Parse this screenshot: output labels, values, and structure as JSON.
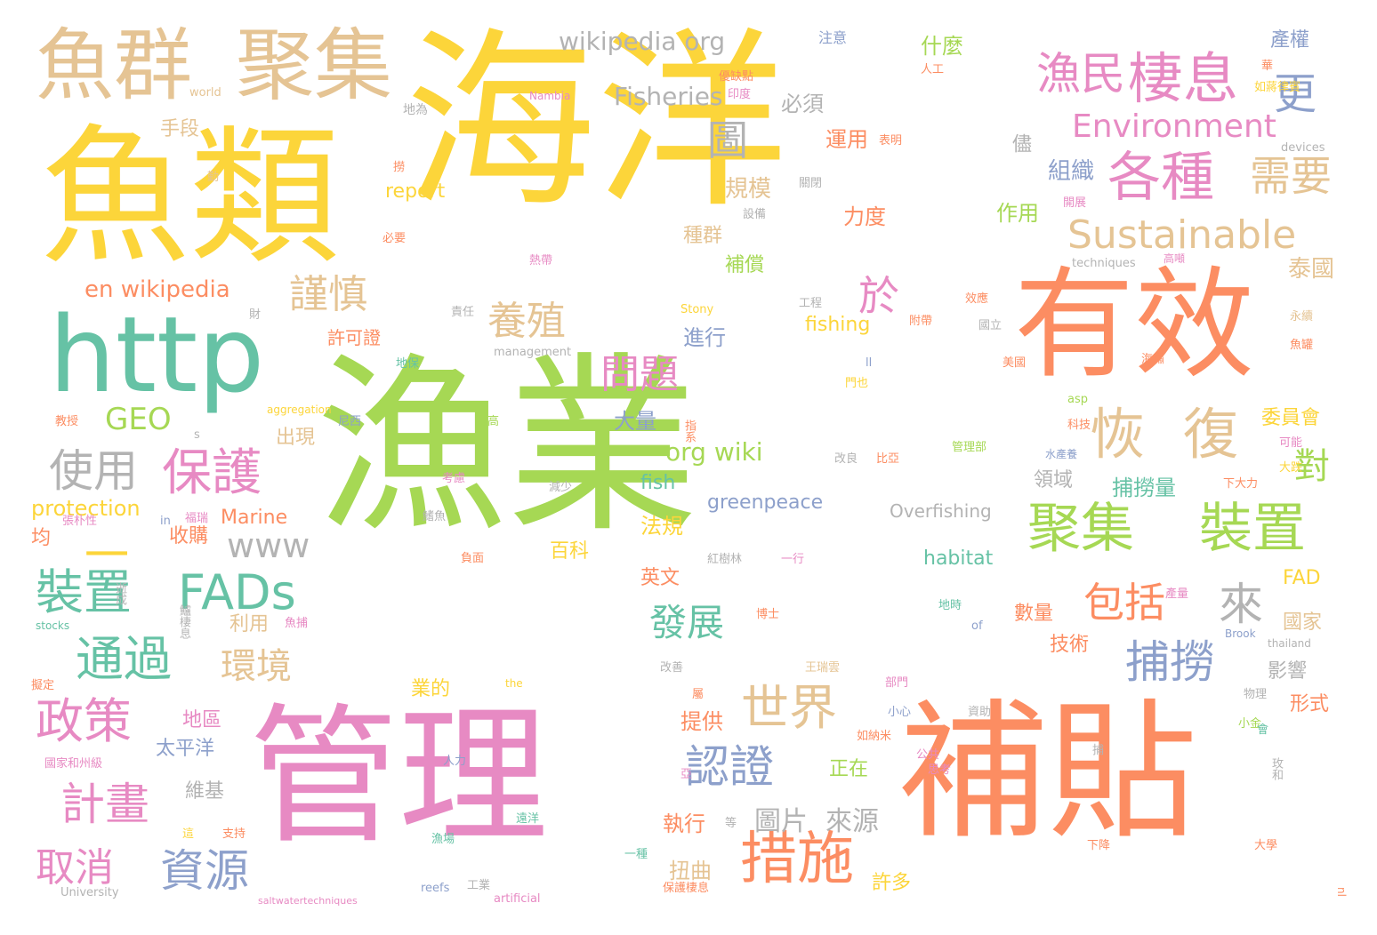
{
  "palette": {
    "yellow": "#fcd53a",
    "green": "#a6d854",
    "orange": "#fc8d62",
    "pink": "#e78ac3",
    "tan": "#e5c494",
    "teal": "#66c2a5",
    "blue": "#8da0cb",
    "gray": "#b3b3b3"
  },
  "words": [
    {
      "text": "海洋",
      "color": "yellow"
    },
    {
      "text": "漁業",
      "color": "green"
    },
    {
      "text": "魚類",
      "color": "yellow"
    },
    {
      "text": "管理",
      "color": "pink"
    },
    {
      "text": "補貼",
      "color": "orange"
    },
    {
      "text": "有效",
      "color": "orange"
    },
    {
      "text": "http",
      "color": "teal"
    },
    {
      "text": "魚群",
      "color": "tan"
    },
    {
      "text": "聚集",
      "color": "tan"
    },
    {
      "text": "wikipedia org",
      "color": "gray"
    },
    {
      "text": "漁民",
      "color": "pink"
    },
    {
      "text": "棲息",
      "color": "pink"
    },
    {
      "text": "更",
      "color": "blue"
    },
    {
      "text": "Fisheries",
      "color": "gray"
    },
    {
      "text": "Environment",
      "color": "pink"
    },
    {
      "text": "各種",
      "color": "pink"
    },
    {
      "text": "需要",
      "color": "tan"
    },
    {
      "text": "Sustainable",
      "color": "tan"
    },
    {
      "text": "圖",
      "color": "gray"
    },
    {
      "text": "於",
      "color": "pink"
    },
    {
      "text": "養殖",
      "color": "tan"
    },
    {
      "text": "謹慎",
      "color": "tan"
    },
    {
      "text": "恢",
      "color": "tan"
    },
    {
      "text": "復",
      "color": "tan"
    },
    {
      "text": "問題",
      "color": "pink"
    },
    {
      "text": "保護",
      "color": "pink"
    },
    {
      "text": "使用",
      "color": "gray"
    },
    {
      "text": "GEO",
      "color": "green"
    },
    {
      "text": "en wikipedia",
      "color": "orange"
    },
    {
      "text": "一",
      "color": "yellow"
    },
    {
      "text": "www",
      "color": "gray"
    },
    {
      "text": "裝置",
      "color": "teal"
    },
    {
      "text": "FADs",
      "color": "teal"
    },
    {
      "text": "聚集",
      "color": "green"
    },
    {
      "text": "裝置",
      "color": "green"
    },
    {
      "text": "來",
      "color": "gray"
    },
    {
      "text": "包括",
      "color": "orange"
    },
    {
      "text": "捕撈",
      "color": "blue"
    },
    {
      "text": "對",
      "color": "green"
    },
    {
      "text": "通過",
      "color": "teal"
    },
    {
      "text": "發展",
      "color": "teal"
    },
    {
      "text": "環境",
      "color": "tan"
    },
    {
      "text": "政策",
      "color": "pink"
    },
    {
      "text": "世界",
      "color": "tan"
    },
    {
      "text": "計畫",
      "color": "pink"
    },
    {
      "text": "認證",
      "color": "blue"
    },
    {
      "text": "措施",
      "color": "orange"
    },
    {
      "text": "取消",
      "color": "pink"
    },
    {
      "text": "資源",
      "color": "blue"
    },
    {
      "text": "圖片",
      "color": "gray"
    },
    {
      "text": "來源",
      "color": "gray"
    },
    {
      "text": "org wiki",
      "color": "green"
    },
    {
      "text": "greenpeace",
      "color": "blue"
    },
    {
      "text": "Overfishing",
      "color": "gray"
    },
    {
      "text": "habitat",
      "color": "teal"
    },
    {
      "text": "fish",
      "color": "teal"
    },
    {
      "text": "protection",
      "color": "yellow"
    },
    {
      "text": "Marine",
      "color": "orange"
    },
    {
      "text": "report",
      "color": "yellow"
    },
    {
      "text": "fishing",
      "color": "yellow"
    },
    {
      "text": "什麼",
      "color": "green"
    },
    {
      "text": "必須",
      "color": "gray"
    },
    {
      "text": "運用",
      "color": "orange"
    },
    {
      "text": "組織",
      "color": "blue"
    },
    {
      "text": "規模",
      "color": "tan"
    },
    {
      "text": "力度",
      "color": "orange"
    },
    {
      "text": "作用",
      "color": "green"
    },
    {
      "text": "種群",
      "color": "tan"
    },
    {
      "text": "補償",
      "color": "green"
    },
    {
      "text": "泰國",
      "color": "tan"
    },
    {
      "text": "進行",
      "color": "blue"
    },
    {
      "text": "許可證",
      "color": "orange"
    },
    {
      "text": "大量",
      "color": "blue"
    },
    {
      "text": "出現",
      "color": "tan"
    },
    {
      "text": "收購",
      "color": "orange"
    },
    {
      "text": "法規",
      "color": "yellow"
    },
    {
      "text": "百科",
      "color": "yellow"
    },
    {
      "text": "領域",
      "color": "gray"
    },
    {
      "text": "捕撈量",
      "color": "teal"
    },
    {
      "text": "委員會",
      "color": "yellow"
    },
    {
      "text": "英文",
      "color": "orange"
    },
    {
      "text": "FAD",
      "color": "yellow"
    },
    {
      "text": "國家",
      "color": "tan"
    },
    {
      "text": "數量",
      "color": "orange"
    },
    {
      "text": "技術",
      "color": "orange"
    },
    {
      "text": "影響",
      "color": "gray"
    },
    {
      "text": "形式",
      "color": "orange"
    },
    {
      "text": "利用",
      "color": "tan"
    },
    {
      "text": "地區",
      "color": "pink"
    },
    {
      "text": "太平洋",
      "color": "blue"
    },
    {
      "text": "維基",
      "color": "gray"
    },
    {
      "text": "正在",
      "color": "green"
    },
    {
      "text": "執行",
      "color": "orange"
    },
    {
      "text": "扭曲",
      "color": "tan"
    },
    {
      "text": "許多",
      "color": "yellow"
    },
    {
      "text": "提供",
      "color": "orange"
    },
    {
      "text": "業的",
      "color": "yellow"
    },
    {
      "text": "均",
      "color": "orange"
    },
    {
      "text": "手段",
      "color": "tan"
    },
    {
      "text": "產權",
      "color": "blue"
    },
    {
      "text": "注意",
      "color": "blue"
    },
    {
      "text": "world",
      "color": "tan"
    },
    {
      "text": "Nambia",
      "color": "pink"
    },
    {
      "text": "地為",
      "color": "gray"
    },
    {
      "text": "人工",
      "color": "orange"
    },
    {
      "text": "優缺點",
      "color": "orange"
    },
    {
      "text": "印度",
      "color": "pink"
    },
    {
      "text": "如蔣律賓",
      "color": "yellow"
    },
    {
      "text": "表明",
      "color": "orange"
    },
    {
      "text": "devices",
      "color": "gray"
    },
    {
      "text": "關閉",
      "color": "gray"
    },
    {
      "text": "開展",
      "color": "pink"
    },
    {
      "text": "設備",
      "color": "gray"
    },
    {
      "text": "必要",
      "color": "orange"
    },
    {
      "text": "techniques",
      "color": "gray"
    },
    {
      "text": "高噸",
      "color": "pink"
    },
    {
      "text": "熱帶",
      "color": "pink"
    },
    {
      "text": "工程",
      "color": "gray"
    },
    {
      "text": "效應",
      "color": "orange"
    },
    {
      "text": "責任",
      "color": "gray"
    },
    {
      "text": "Stony",
      "color": "yellow"
    },
    {
      "text": "附帶",
      "color": "orange"
    },
    {
      "text": "國立",
      "color": "gray"
    },
    {
      "text": "management",
      "color": "gray"
    },
    {
      "text": "永續",
      "color": "tan"
    },
    {
      "text": "魚罐",
      "color": "orange"
    },
    {
      "text": "海嘯",
      "color": "orange"
    },
    {
      "text": "美國",
      "color": "orange"
    },
    {
      "text": "地保",
      "color": "teal"
    },
    {
      "text": "門也",
      "color": "yellow"
    },
    {
      "text": "aggregation",
      "color": "yellow"
    },
    {
      "text": "尼西",
      "color": "blue"
    },
    {
      "text": "提高",
      "color": "green"
    },
    {
      "text": "科技",
      "color": "orange"
    },
    {
      "text": "可能",
      "color": "pink"
    },
    {
      "text": "水產養",
      "color": "blue"
    },
    {
      "text": "管理部",
      "color": "green"
    },
    {
      "text": "改良",
      "color": "gray"
    },
    {
      "text": "比亞",
      "color": "orange"
    },
    {
      "text": "大跌",
      "color": "yellow"
    },
    {
      "text": "下大力",
      "color": "orange"
    },
    {
      "text": "教授",
      "color": "orange"
    },
    {
      "text": "指系",
      "color": "orange"
    },
    {
      "text": "考慮",
      "color": "pink"
    },
    {
      "text": "減少",
      "color": "gray"
    },
    {
      "text": "張朴性",
      "color": "pink"
    },
    {
      "text": "福瑞",
      "color": "pink"
    },
    {
      "text": "負面",
      "color": "orange"
    },
    {
      "text": "紅樹林",
      "color": "gray"
    },
    {
      "text": "一行",
      "color": "pink"
    },
    {
      "text": "逝成",
      "color": "gray"
    },
    {
      "text": "鱸棲息",
      "color": "gray"
    },
    {
      "text": "stocks",
      "color": "teal"
    },
    {
      "text": "of",
      "color": "blue"
    },
    {
      "text": "Brook",
      "color": "blue"
    },
    {
      "text": "thailand",
      "color": "gray"
    },
    {
      "text": "博士",
      "color": "orange"
    },
    {
      "text": "地時",
      "color": "teal"
    },
    {
      "text": "產量",
      "color": "pink"
    },
    {
      "text": "王瑞雲",
      "color": "tan"
    },
    {
      "text": "改善",
      "color": "gray"
    },
    {
      "text": "部門",
      "color": "pink"
    },
    {
      "text": "物理",
      "color": "gray"
    },
    {
      "text": "擬定",
      "color": "orange"
    },
    {
      "text": "the",
      "color": "yellow"
    },
    {
      "text": "小心",
      "color": "blue"
    },
    {
      "text": "資助",
      "color": "gray"
    },
    {
      "text": "小金",
      "color": "green"
    },
    {
      "text": "如納米",
      "color": "orange"
    },
    {
      "text": "公共",
      "color": "pink"
    },
    {
      "text": "國家和州級",
      "color": "pink"
    },
    {
      "text": "人力",
      "color": "blue"
    },
    {
      "text": "思考",
      "color": "pink"
    },
    {
      "text": "玫和",
      "color": "gray"
    },
    {
      "text": "亞",
      "color": "pink"
    },
    {
      "text": "這",
      "color": "yellow"
    },
    {
      "text": "支持",
      "color": "orange"
    },
    {
      "text": "遠洋",
      "color": "teal"
    },
    {
      "text": "一種",
      "color": "teal"
    },
    {
      "text": "漁場",
      "color": "teal"
    },
    {
      "text": "下降",
      "color": "orange"
    },
    {
      "text": "大學",
      "color": "orange"
    },
    {
      "text": "University",
      "color": "gray"
    },
    {
      "text": "reefs",
      "color": "blue"
    },
    {
      "text": "工業",
      "color": "gray"
    },
    {
      "text": "artificial",
      "color": "pink"
    },
    {
      "text": "保護棲息",
      "color": "orange"
    },
    {
      "text": "saltwatertechniques",
      "color": "pink"
    },
    {
      "text": "nl",
      "color": "orange"
    },
    {
      "text": "儘",
      "color": "gray"
    },
    {
      "text": "撈",
      "color": "orange"
    },
    {
      "text": "勤",
      "color": "tan"
    },
    {
      "text": "財",
      "color": "gray"
    },
    {
      "text": "魚捕",
      "color": "pink"
    },
    {
      "text": "in",
      "color": "blue"
    },
    {
      "text": "s",
      "color": "gray"
    },
    {
      "text": "鰭魚",
      "color": "gray"
    },
    {
      "text": "ll",
      "color": "blue"
    },
    {
      "text": "asp",
      "color": "green"
    },
    {
      "text": "會",
      "color": "teal"
    },
    {
      "text": "捕",
      "color": "gray"
    },
    {
      "text": "等",
      "color": "gray"
    },
    {
      "text": "華",
      "color": "orange"
    },
    {
      "text": "屬",
      "color": "orange"
    }
  ]
}
